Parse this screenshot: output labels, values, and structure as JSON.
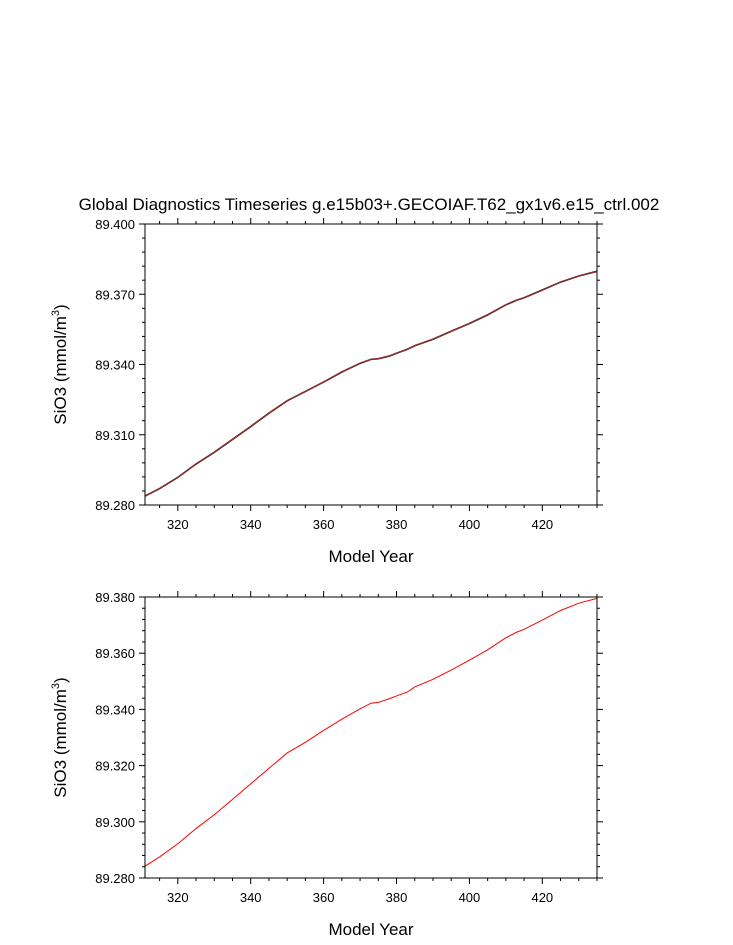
{
  "title": "Global Diagnostics Timeseries g.e15b03+.GECOIAF.T62_gx1v6.e15_ctrl.002",
  "colors": {
    "monthly": "#000000",
    "annual": "#ff0000",
    "axes": "#000000"
  },
  "chart_data": [
    {
      "type": "line",
      "title": "Global Diagnostics Timeseries g.e15b03+.GECOIAF.T62_gx1v6.e15_ctrl.002",
      "xlabel": "Model Year",
      "ylabel": {
        "main": "SiO3 (mmol/m",
        "sup": "3",
        "close": ")"
      },
      "xlim": [
        311,
        435
      ],
      "ylim": [
        89.28,
        89.4
      ],
      "xticks": [
        320,
        340,
        360,
        380,
        400,
        420
      ],
      "yticks": [
        89.28,
        89.31,
        89.34,
        89.37,
        89.4
      ],
      "ytick_labels": [
        "89.280",
        "89.310",
        "89.340",
        "89.370",
        "89.400"
      ],
      "grid": false,
      "series": [
        {
          "color": "#000000",
          "x": [
            311,
            315,
            320,
            325,
            330,
            335,
            340,
            345,
            350,
            355,
            360,
            365,
            370,
            373,
            375,
            378,
            380,
            383,
            385,
            390,
            395,
            400,
            405,
            410,
            413,
            415,
            420,
            425,
            430,
            435
          ],
          "values": [
            89.2838,
            89.287,
            89.2918,
            89.2975,
            89.3025,
            89.308,
            89.3135,
            89.3192,
            89.3245,
            89.3285,
            89.3325,
            89.3368,
            89.3405,
            89.3422,
            89.3425,
            89.3436,
            89.3448,
            89.3465,
            89.348,
            89.3508,
            89.3542,
            89.3575,
            89.3612,
            89.3655,
            89.3675,
            89.3685,
            89.3718,
            89.3752,
            89.3778,
            89.3798
          ]
        },
        {
          "color": "#b03030",
          "x": [
            311,
            315,
            320,
            325,
            330,
            335,
            340,
            345,
            350,
            355,
            360,
            365,
            370,
            373,
            375,
            378,
            380,
            383,
            385,
            390,
            395,
            400,
            405,
            410,
            413,
            415,
            420,
            425,
            430,
            435
          ],
          "values": [
            89.2838,
            89.287,
            89.2918,
            89.2975,
            89.3025,
            89.308,
            89.3135,
            89.3192,
            89.3245,
            89.3285,
            89.3325,
            89.3368,
            89.3405,
            89.3422,
            89.3425,
            89.3436,
            89.3448,
            89.3465,
            89.348,
            89.3508,
            89.3542,
            89.3575,
            89.3612,
            89.3655,
            89.3675,
            89.3685,
            89.3718,
            89.3752,
            89.3778,
            89.3798
          ]
        }
      ]
    },
    {
      "type": "line",
      "xlabel": "Model Year",
      "ylabel": {
        "main": "SiO3 (mmol/m",
        "sup": "3",
        "close": ")"
      },
      "xlim": [
        311,
        435
      ],
      "ylim": [
        89.28,
        89.38
      ],
      "xticks": [
        320,
        340,
        360,
        380,
        400,
        420
      ],
      "yticks": [
        89.28,
        89.3,
        89.32,
        89.34,
        89.36,
        89.38
      ],
      "ytick_labels": [
        "89.280",
        "89.300",
        "89.320",
        "89.340",
        "89.360",
        "89.380"
      ],
      "grid": false,
      "series": [
        {
          "color": "#ff0000",
          "x": [
            311,
            315,
            320,
            325,
            330,
            335,
            340,
            345,
            350,
            355,
            360,
            365,
            370,
            373,
            375,
            378,
            380,
            383,
            385,
            390,
            395,
            400,
            405,
            410,
            413,
            415,
            420,
            425,
            430,
            435
          ],
          "values": [
            89.2842,
            89.2875,
            89.2922,
            89.2976,
            89.3025,
            89.308,
            89.3135,
            89.319,
            89.3245,
            89.3283,
            89.3325,
            89.3365,
            89.3402,
            89.3422,
            89.3425,
            89.3438,
            89.3448,
            89.3462,
            89.348,
            89.3507,
            89.354,
            89.3575,
            89.3612,
            89.3655,
            89.3675,
            89.3685,
            89.3718,
            89.3752,
            89.3778,
            89.3795
          ]
        }
      ]
    }
  ]
}
